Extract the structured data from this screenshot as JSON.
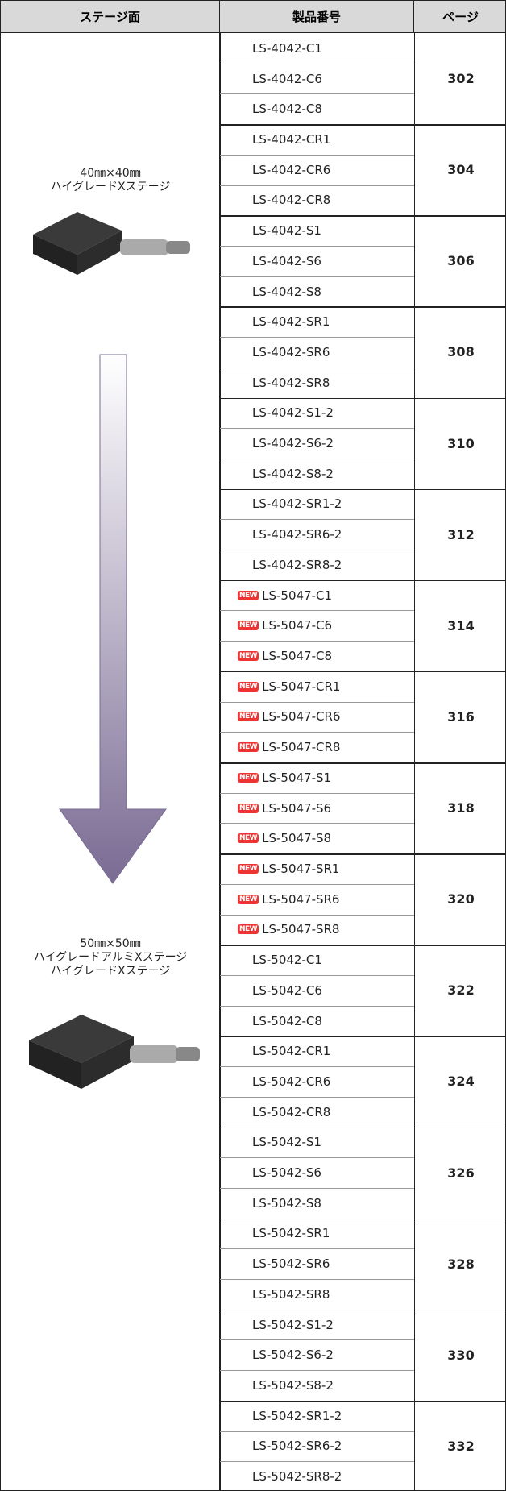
{
  "header": [
    "ステージ面",
    "製品番号",
    "ページ"
  ],
  "new_badge": "NEW",
  "stages": [
    {
      "lines": [
        "40㎜×40㎜",
        "ハイグレードXステージ"
      ]
    },
    {
      "lines": [
        "50㎜×50㎜",
        "ハイグレードアルミXステージ",
        "ハイグレードXステージ"
      ]
    }
  ],
  "groups": [
    {
      "page": "302",
      "products": [
        {
          "name": "LS-4042-C1"
        },
        {
          "name": "LS-4042-C6"
        },
        {
          "name": "LS-4042-C8"
        }
      ]
    },
    {
      "page": "304",
      "products": [
        {
          "name": "LS-4042-CR1"
        },
        {
          "name": "LS-4042-CR6"
        },
        {
          "name": "LS-4042-CR8"
        }
      ]
    },
    {
      "page": "306",
      "products": [
        {
          "name": "LS-4042-S1"
        },
        {
          "name": "LS-4042-S6"
        },
        {
          "name": "LS-4042-S8"
        }
      ]
    },
    {
      "page": "308",
      "products": [
        {
          "name": "LS-4042-SR1"
        },
        {
          "name": "LS-4042-SR6"
        },
        {
          "name": "LS-4042-SR8"
        }
      ]
    },
    {
      "page": "310",
      "products": [
        {
          "name": "LS-4042-S1-2"
        },
        {
          "name": "LS-4042-S6-2"
        },
        {
          "name": "LS-4042-S8-2"
        }
      ]
    },
    {
      "page": "312",
      "products": [
        {
          "name": "LS-4042-SR1-2"
        },
        {
          "name": "LS-4042-SR6-2"
        },
        {
          "name": "LS-4042-SR8-2"
        }
      ]
    },
    {
      "page": "314",
      "products": [
        {
          "name": "LS-5047-C1",
          "is_new": true
        },
        {
          "name": "LS-5047-C6",
          "is_new": true
        },
        {
          "name": "LS-5047-C8",
          "is_new": true
        }
      ]
    },
    {
      "page": "316",
      "products": [
        {
          "name": "LS-5047-CR1",
          "is_new": true
        },
        {
          "name": "LS-5047-CR6",
          "is_new": true
        },
        {
          "name": "LS-5047-CR8",
          "is_new": true
        }
      ]
    },
    {
      "page": "318",
      "products": [
        {
          "name": "LS-5047-S1",
          "is_new": true
        },
        {
          "name": "LS-5047-S6",
          "is_new": true
        },
        {
          "name": "LS-5047-S8",
          "is_new": true
        }
      ]
    },
    {
      "page": "320",
      "products": [
        {
          "name": "LS-5047-SR1",
          "is_new": true
        },
        {
          "name": "LS-5047-SR6",
          "is_new": true
        },
        {
          "name": "LS-5047-SR8",
          "is_new": true
        }
      ]
    },
    {
      "page": "322",
      "products": [
        {
          "name": "LS-5042-C1"
        },
        {
          "name": "LS-5042-C6"
        },
        {
          "name": "LS-5042-C8"
        }
      ]
    },
    {
      "page": "324",
      "products": [
        {
          "name": "LS-5042-CR1"
        },
        {
          "name": "LS-5042-CR6"
        },
        {
          "name": "LS-5042-CR8"
        }
      ]
    },
    {
      "page": "326",
      "products": [
        {
          "name": "LS-5042-S1"
        },
        {
          "name": "LS-5042-S6"
        },
        {
          "name": "LS-5042-S8"
        }
      ]
    },
    {
      "page": "328",
      "products": [
        {
          "name": "LS-5042-SR1"
        },
        {
          "name": "LS-5042-SR6"
        },
        {
          "name": "LS-5042-SR8"
        }
      ]
    },
    {
      "page": "330",
      "products": [
        {
          "name": "LS-5042-S1-2"
        },
        {
          "name": "LS-5042-S6-2"
        },
        {
          "name": "LS-5042-S8-2"
        }
      ]
    },
    {
      "page": "332",
      "products": [
        {
          "name": "LS-5042-SR1-2"
        },
        {
          "name": "LS-5042-SR6-2"
        },
        {
          "name": "LS-5042-SR8-2"
        }
      ]
    }
  ]
}
